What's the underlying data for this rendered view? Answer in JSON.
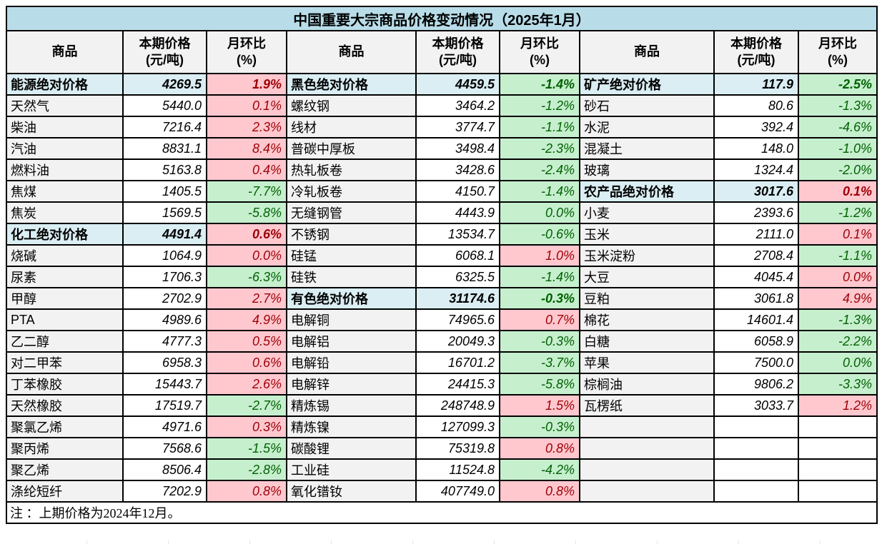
{
  "title": "中国重要大宗商品价格变动情况（2025年1月）",
  "columns": {
    "commodity": "商品",
    "price_line1": "本期价格",
    "price_line2": "(元/吨)",
    "pct_line1": "月环比",
    "pct_line2": "(%)"
  },
  "note": "注 ：上期价格为2024年12月。",
  "colors": {
    "title_bg": "#b8dde9",
    "section_bg": "#daeef3",
    "label_bg": "#f2f2f2",
    "increase_bg": "#ffc7ce",
    "increase_text": "#9c0006",
    "decrease_bg": "#c6efce",
    "decrease_text": "#006100",
    "border": "#000000"
  },
  "chart_data": {
    "type": "table",
    "title": "中国重要大宗商品价格变动情况（2025年1月）",
    "column_headers": [
      "商品",
      "本期价格(元/吨)",
      "月环比(%)"
    ],
    "groups": [
      {
        "rows": [
          {
            "name": "能源绝对价格",
            "price": "4269.5",
            "pct": "1.9%",
            "dir": "up",
            "section": true
          },
          {
            "name": "天然气",
            "price": "5440.0",
            "pct": "0.1%",
            "dir": "up"
          },
          {
            "name": "柴油",
            "price": "7216.4",
            "pct": "2.3%",
            "dir": "up"
          },
          {
            "name": "汽油",
            "price": "8831.1",
            "pct": "8.4%",
            "dir": "up"
          },
          {
            "name": "燃料油",
            "price": "5163.8",
            "pct": "0.4%",
            "dir": "up"
          },
          {
            "name": "焦煤",
            "price": "1405.5",
            "pct": "-7.7%",
            "dir": "down"
          },
          {
            "name": "焦炭",
            "price": "1569.5",
            "pct": "-5.8%",
            "dir": "down"
          },
          {
            "name": "化工绝对价格",
            "price": "4491.4",
            "pct": "0.6%",
            "dir": "up",
            "section": true
          },
          {
            "name": "烧碱",
            "price": "1064.9",
            "pct": "0.0%",
            "dir": "up"
          },
          {
            "name": "尿素",
            "price": "1706.3",
            "pct": "-6.3%",
            "dir": "down"
          },
          {
            "name": "甲醇",
            "price": "2702.9",
            "pct": "2.7%",
            "dir": "up"
          },
          {
            "name": "PTA",
            "price": "4989.6",
            "pct": "4.9%",
            "dir": "up"
          },
          {
            "name": "乙二醇",
            "price": "4777.3",
            "pct": "0.5%",
            "dir": "up"
          },
          {
            "name": "对二甲苯",
            "price": "6958.3",
            "pct": "0.6%",
            "dir": "up"
          },
          {
            "name": "丁苯橡胶",
            "price": "15443.7",
            "pct": "2.6%",
            "dir": "up"
          },
          {
            "name": "天然橡胶",
            "price": "17519.7",
            "pct": "-2.7%",
            "dir": "down"
          },
          {
            "name": "聚氯乙烯",
            "price": "4971.6",
            "pct": "0.3%",
            "dir": "up"
          },
          {
            "name": "聚丙烯",
            "price": "7568.6",
            "pct": "-1.5%",
            "dir": "down"
          },
          {
            "name": "聚乙烯",
            "price": "8506.4",
            "pct": "-2.8%",
            "dir": "down"
          },
          {
            "name": "涤纶短纤",
            "price": "7202.9",
            "pct": "0.8%",
            "dir": "up"
          }
        ]
      },
      {
        "rows": [
          {
            "name": "黑色绝对价格",
            "price": "4459.5",
            "pct": "-1.4%",
            "dir": "down",
            "section": true
          },
          {
            "name": "螺纹钢",
            "price": "3464.2",
            "pct": "-1.2%",
            "dir": "down"
          },
          {
            "name": "线材",
            "price": "3774.7",
            "pct": "-1.1%",
            "dir": "down"
          },
          {
            "name": "普碳中厚板",
            "price": "3498.4",
            "pct": "-2.3%",
            "dir": "down"
          },
          {
            "name": "热轧板卷",
            "price": "3428.6",
            "pct": "-2.4%",
            "dir": "down"
          },
          {
            "name": "冷轧板卷",
            "price": "4150.7",
            "pct": "-1.4%",
            "dir": "down"
          },
          {
            "name": "无缝钢管",
            "price": "4443.9",
            "pct": "0.0%",
            "dir": "down"
          },
          {
            "name": "不锈钢",
            "price": "13534.7",
            "pct": "-0.6%",
            "dir": "down"
          },
          {
            "name": "硅锰",
            "price": "6068.1",
            "pct": "1.0%",
            "dir": "up"
          },
          {
            "name": "硅铁",
            "price": "6325.5",
            "pct": "-1.4%",
            "dir": "down"
          },
          {
            "name": "有色绝对价格",
            "price": "31174.6",
            "pct": "-0.3%",
            "dir": "down",
            "section": true
          },
          {
            "name": "电解铜",
            "price": "74965.6",
            "pct": "0.7%",
            "dir": "up"
          },
          {
            "name": "电解铝",
            "price": "20049.3",
            "pct": "-0.3%",
            "dir": "down"
          },
          {
            "name": "电解铅",
            "price": "16701.2",
            "pct": "-3.7%",
            "dir": "down"
          },
          {
            "name": "电解锌",
            "price": "24415.3",
            "pct": "-5.8%",
            "dir": "down"
          },
          {
            "name": "精炼锡",
            "price": "248748.9",
            "pct": "1.5%",
            "dir": "up"
          },
          {
            "name": "精炼镍",
            "price": "127099.3",
            "pct": "-0.3%",
            "dir": "down"
          },
          {
            "name": "碳酸锂",
            "price": "75319.8",
            "pct": "0.8%",
            "dir": "up"
          },
          {
            "name": "工业硅",
            "price": "11524.8",
            "pct": "-4.2%",
            "dir": "down"
          },
          {
            "name": "氧化镨钕",
            "price": "407749.0",
            "pct": "0.8%",
            "dir": "up"
          }
        ]
      },
      {
        "rows": [
          {
            "name": "矿产绝对价格",
            "price": "117.9",
            "pct": "-2.5%",
            "dir": "down",
            "section": true
          },
          {
            "name": "砂石",
            "price": "80.6",
            "pct": "-1.3%",
            "dir": "down"
          },
          {
            "name": "水泥",
            "price": "392.4",
            "pct": "-4.6%",
            "dir": "down"
          },
          {
            "name": "混凝土",
            "price": "148.0",
            "pct": "-1.0%",
            "dir": "down"
          },
          {
            "name": "玻璃",
            "price": "1324.4",
            "pct": "-2.0%",
            "dir": "down"
          },
          {
            "name": "农产品绝对价格",
            "price": "3017.6",
            "pct": "0.1%",
            "dir": "up",
            "section": true
          },
          {
            "name": "小麦",
            "price": "2393.6",
            "pct": "-1.2%",
            "dir": "down"
          },
          {
            "name": "玉米",
            "price": "2111.0",
            "pct": "0.1%",
            "dir": "up"
          },
          {
            "name": "玉米淀粉",
            "price": "2708.4",
            "pct": "-1.1%",
            "dir": "down"
          },
          {
            "name": "大豆",
            "price": "4045.4",
            "pct": "0.0%",
            "dir": "up"
          },
          {
            "name": "豆粕",
            "price": "3061.8",
            "pct": "4.9%",
            "dir": "up"
          },
          {
            "name": "棉花",
            "price": "14601.4",
            "pct": "-1.3%",
            "dir": "down"
          },
          {
            "name": "白糖",
            "price": "6058.9",
            "pct": "-2.2%",
            "dir": "down"
          },
          {
            "name": "苹果",
            "price": "7500.0",
            "pct": "0.0%",
            "dir": "down"
          },
          {
            "name": "棕榈油",
            "price": "9806.2",
            "pct": "-3.3%",
            "dir": "down"
          },
          {
            "name": "瓦楞纸",
            "price": "3033.7",
            "pct": "1.2%",
            "dir": "up"
          },
          null,
          null,
          null,
          null
        ]
      }
    ]
  }
}
